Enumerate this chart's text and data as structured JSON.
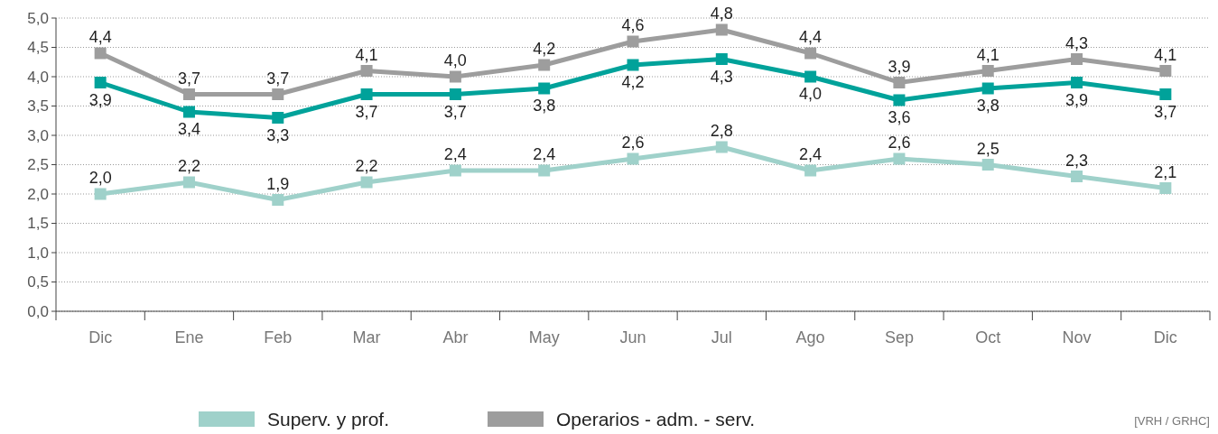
{
  "chart_data": {
    "type": "line",
    "categories": [
      "Dic",
      "Ene",
      "Feb",
      "Mar",
      "Abr",
      "May",
      "Jun",
      "Jul",
      "Ago",
      "Sep",
      "Oct",
      "Nov",
      "Dic"
    ],
    "series": [
      {
        "name": "Superv. y prof.",
        "color": "#9fd1ca",
        "values": [
          2.0,
          2.2,
          1.9,
          2.2,
          2.4,
          2.4,
          2.6,
          2.8,
          2.4,
          2.6,
          2.5,
          2.3,
          2.1
        ],
        "value_labels": [
          "2,0",
          "2,2",
          "1,9",
          "2,2",
          "2,4",
          "2,4",
          "2,6",
          "2,8",
          "2,4",
          "2,6",
          "2,5",
          "2,3",
          "2,1"
        ]
      },
      {
        "name": "Operarios - adm. - serv.",
        "color": "#9d9d9d",
        "values": [
          4.4,
          3.7,
          3.7,
          4.1,
          4.0,
          4.2,
          4.6,
          4.8,
          4.4,
          3.9,
          4.1,
          4.3,
          4.1
        ],
        "value_labels": [
          "4,4",
          "3,7",
          "3,7",
          "4,1",
          "4,0",
          "4,2",
          "4,6",
          "4,8",
          "4,4",
          "3,9",
          "4,1",
          "4,3",
          "4,1"
        ]
      },
      {
        "color": "#00a29a",
        "values": [
          3.9,
          3.4,
          3.3,
          3.7,
          3.7,
          3.8,
          4.2,
          4.3,
          4.0,
          3.6,
          3.8,
          3.9,
          3.7
        ],
        "value_labels": [
          "3,9",
          "3,4",
          "3,3",
          "3,7",
          "3,7",
          "3,8",
          "4,2",
          "4,3",
          "4,0",
          "3,6",
          "3,8",
          "3,9",
          "3,7"
        ]
      }
    ],
    "ylim": [
      0,
      5
    ],
    "yticks": [
      {
        "value": 0,
        "label": "0,0"
      },
      {
        "value": 0.5,
        "label": "0,5"
      },
      {
        "value": 1,
        "label": "1,0"
      },
      {
        "value": 1.5,
        "label": "1,5"
      },
      {
        "value": 2,
        "label": "2,0"
      },
      {
        "value": 2.5,
        "label": "2,5"
      },
      {
        "value": 3,
        "label": "3,0"
      },
      {
        "value": 3.5,
        "label": "3,5"
      },
      {
        "value": 4,
        "label": "4,0"
      },
      {
        "value": 4.5,
        "label": "4,5"
      },
      {
        "value": 5,
        "label": "5,0"
      }
    ],
    "grid": "y",
    "legend": "bottom",
    "marker": "square",
    "line_style": "solid",
    "annotations": [
      "[VRH / GRHC]"
    ]
  }
}
